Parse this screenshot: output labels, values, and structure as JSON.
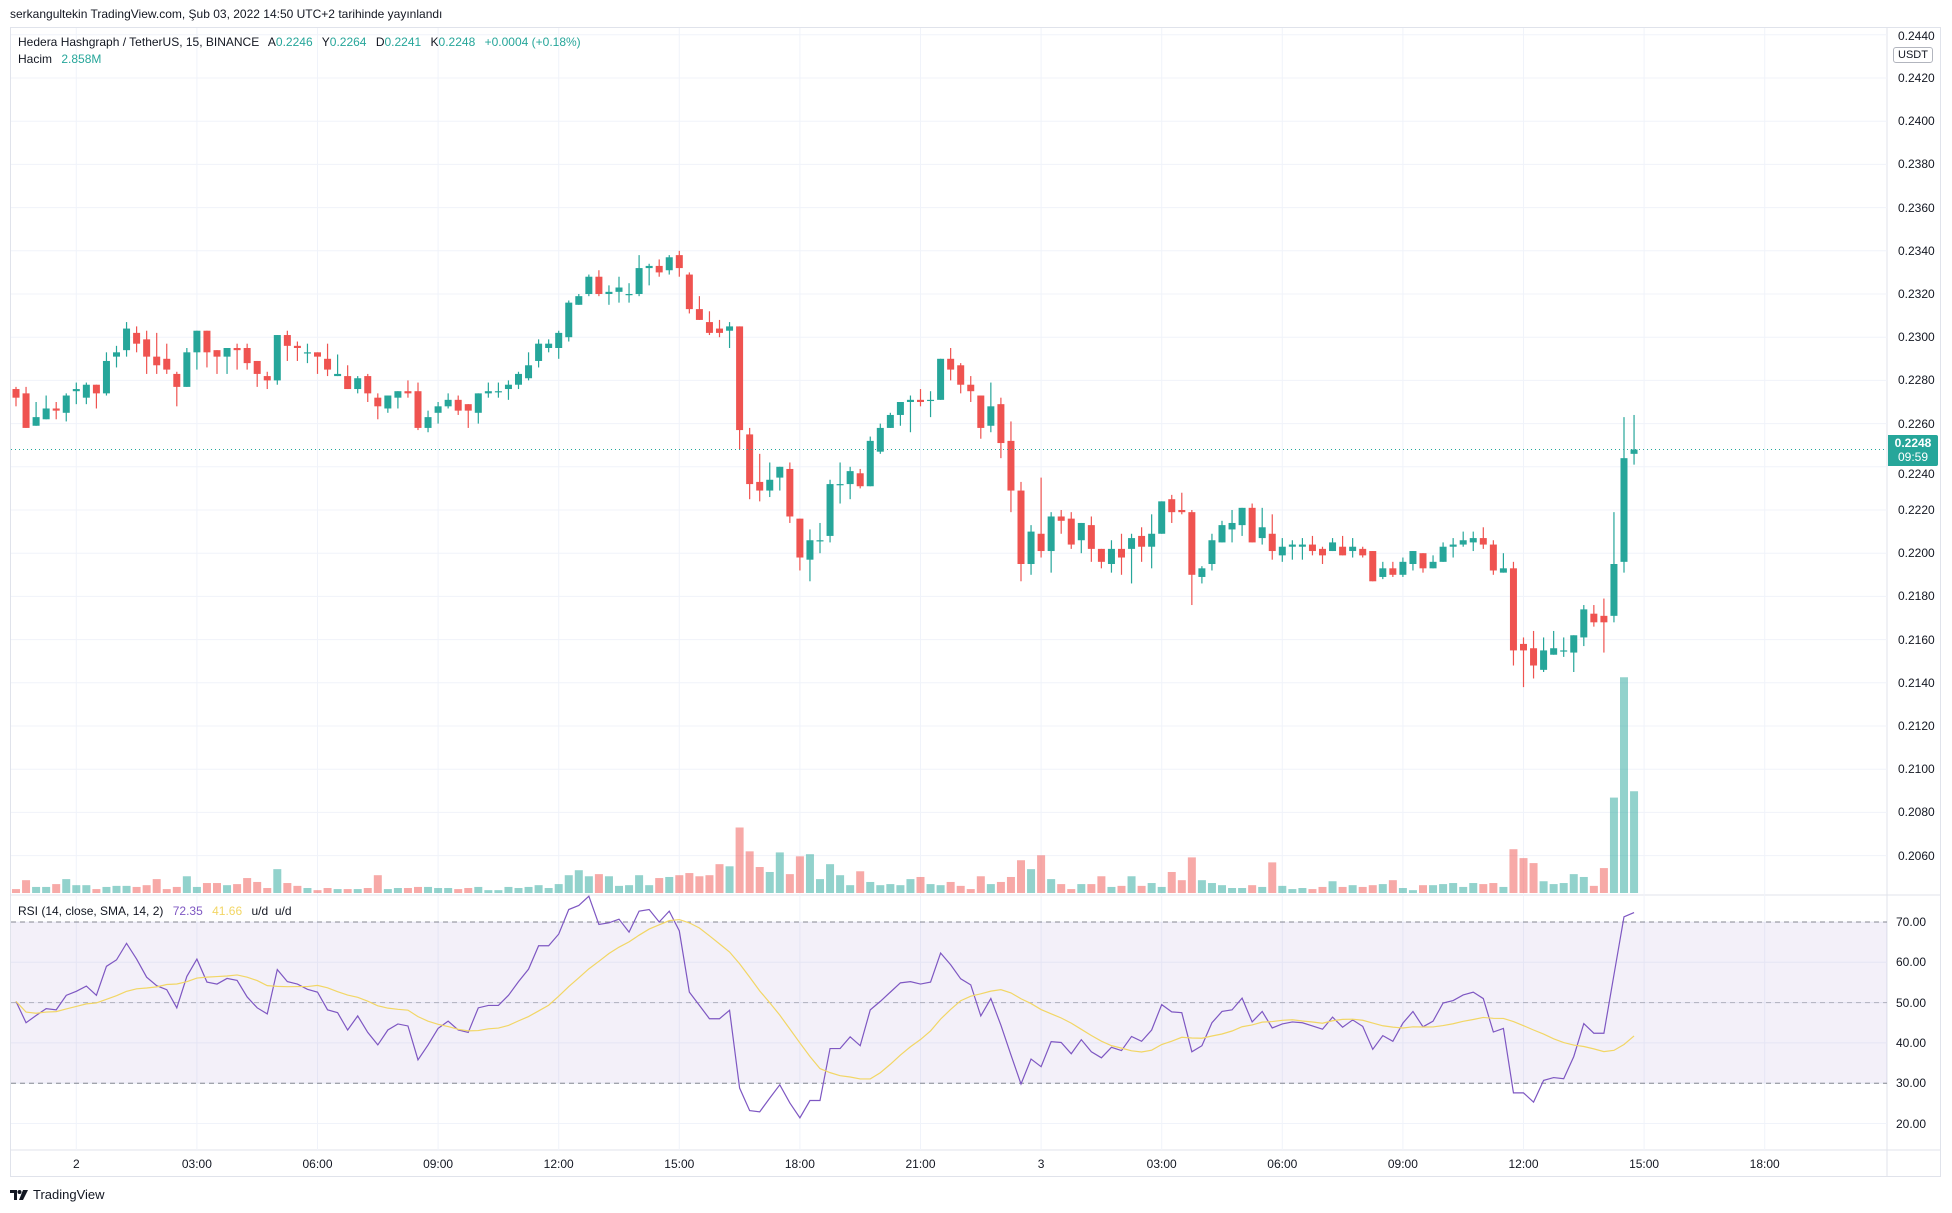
{
  "publish_line": "serkangultekin TradingView.com, Şub 03, 2022 14:50 UTC+2 tarihinde yayınlandı",
  "legend": {
    "symbol": "Hedera Hashgraph / TetherUS, 15, BINANCE",
    "open_label": "A",
    "open": "0.2246",
    "high_label": "Y",
    "high": "0.2264",
    "low_label": "D",
    "low": "0.2241",
    "close_label": "K",
    "close": "0.2248",
    "change": "+0.0004 (+0.18%)",
    "volume_label": "Hacim",
    "volume": "2.858M"
  },
  "rsi_legend": {
    "title": "RSI (14, close, SMA, 14, 2)",
    "rsi": "72.35",
    "sma": "41.66",
    "extra": "u/d  u/d"
  },
  "price_axis": {
    "currency_badge": "USDT",
    "last_price": "0.2248",
    "countdown": "09:59"
  },
  "logo_text": "TradingView",
  "colors": {
    "up": "#26a69a",
    "down": "#ef5350",
    "rsi": "#7e57c2",
    "rsi_sma": "#f2d665",
    "band": "#7e57c2",
    "grid": "#f0f3fa"
  },
  "chart_data": {
    "type": "candlestick",
    "interval_minutes": 15,
    "first_bar_time": "2022-02-01T22:30",
    "price_ticks": [
      "0.2060",
      "0.2080",
      "0.2100",
      "0.2120",
      "0.2140",
      "0.2160",
      "0.2180",
      "0.2200",
      "0.2220",
      "0.2240",
      "0.2260",
      "0.2280",
      "0.2300",
      "0.2320",
      "0.2340",
      "0.2360",
      "0.2380",
      "0.2400",
      "0.2420",
      "0.2440"
    ],
    "rsi_ticks": [
      "20.00",
      "30.00",
      "40.00",
      "50.00",
      "60.00",
      "70.00"
    ],
    "rsi_levels": {
      "upper": 70,
      "middle": 50,
      "lower": 30
    },
    "rsi_sma_length": 14,
    "time_ticks": [
      {
        "label": "2",
        "time": "2022-02-02T00:00"
      },
      {
        "label": "03:00",
        "time": "2022-02-02T03:00"
      },
      {
        "label": "06:00",
        "time": "2022-02-02T06:00"
      },
      {
        "label": "09:00",
        "time": "2022-02-02T09:00"
      },
      {
        "label": "12:00",
        "time": "2022-02-02T12:00"
      },
      {
        "label": "15:00",
        "time": "2022-02-02T15:00"
      },
      {
        "label": "18:00",
        "time": "2022-02-02T18:00"
      },
      {
        "label": "21:00",
        "time": "2022-02-02T21:00"
      },
      {
        "label": "3",
        "time": "2022-02-03T00:00"
      },
      {
        "label": "03:00",
        "time": "2022-02-03T03:00"
      },
      {
        "label": "06:00",
        "time": "2022-02-03T06:00"
      },
      {
        "label": "09:00",
        "time": "2022-02-03T09:00"
      },
      {
        "label": "12:00",
        "time": "2022-02-03T12:00"
      },
      {
        "label": "15:00",
        "time": "2022-02-03T15:00"
      },
      {
        "label": "18:00",
        "time": "2022-02-03T18:00"
      }
    ],
    "ohlc": [
      [
        0.2276,
        0.2277,
        0.2268,
        0.2272
      ],
      [
        0.2274,
        0.2277,
        0.2258,
        0.2258
      ],
      [
        0.2259,
        0.227,
        0.2259,
        0.2263
      ],
      [
        0.2262,
        0.2273,
        0.2262,
        0.2267
      ],
      [
        0.2267,
        0.227,
        0.2262,
        0.2266
      ],
      [
        0.2265,
        0.2274,
        0.2261,
        0.2273
      ],
      [
        0.2275,
        0.2279,
        0.2269,
        0.2276
      ],
      [
        0.2272,
        0.2279,
        0.2269,
        0.2278
      ],
      [
        0.2278,
        0.2278,
        0.2267,
        0.2274
      ],
      [
        0.2274,
        0.2293,
        0.2273,
        0.2289
      ],
      [
        0.2291,
        0.2296,
        0.2286,
        0.2293
      ],
      [
        0.2294,
        0.2307,
        0.2291,
        0.2304
      ],
      [
        0.2302,
        0.2305,
        0.2293,
        0.2297
      ],
      [
        0.2299,
        0.2303,
        0.2283,
        0.2291
      ],
      [
        0.2291,
        0.2302,
        0.2283,
        0.2287
      ],
      [
        0.229,
        0.2297,
        0.2283,
        0.2285
      ],
      [
        0.2283,
        0.2284,
        0.2268,
        0.2277
      ],
      [
        0.2277,
        0.2295,
        0.2277,
        0.2293
      ],
      [
        0.2293,
        0.2303,
        0.2285,
        0.2303
      ],
      [
        0.2303,
        0.2303,
        0.2286,
        0.2293
      ],
      [
        0.2294,
        0.2294,
        0.2283,
        0.2291
      ],
      [
        0.2291,
        0.2295,
        0.2283,
        0.2295
      ],
      [
        0.2295,
        0.2297,
        0.2285,
        0.2294
      ],
      [
        0.2295,
        0.2297,
        0.2285,
        0.2288
      ],
      [
        0.2289,
        0.2289,
        0.2277,
        0.2283
      ],
      [
        0.2282,
        0.2284,
        0.2276,
        0.228
      ],
      [
        0.228,
        0.2301,
        0.2278,
        0.2301
      ],
      [
        0.2301,
        0.2303,
        0.2289,
        0.2296
      ],
      [
        0.2296,
        0.2298,
        0.2289,
        0.2295
      ],
      [
        0.2293,
        0.2297,
        0.2288,
        0.2293
      ],
      [
        0.2293,
        0.2293,
        0.2283,
        0.2291
      ],
      [
        0.229,
        0.2297,
        0.2282,
        0.2285
      ],
      [
        0.2282,
        0.2292,
        0.2282,
        0.2283
      ],
      [
        0.2282,
        0.2287,
        0.2276,
        0.2276
      ],
      [
        0.2276,
        0.2282,
        0.2274,
        0.2281
      ],
      [
        0.2282,
        0.2283,
        0.227,
        0.2274
      ],
      [
        0.2272,
        0.2274,
        0.2262,
        0.2268
      ],
      [
        0.2267,
        0.2273,
        0.2265,
        0.2273
      ],
      [
        0.2272,
        0.2275,
        0.2267,
        0.2275
      ],
      [
        0.2275,
        0.228,
        0.2272,
        0.2274
      ],
      [
        0.2275,
        0.2279,
        0.2257,
        0.2258
      ],
      [
        0.2258,
        0.2266,
        0.2256,
        0.2263
      ],
      [
        0.2265,
        0.227,
        0.226,
        0.2268
      ],
      [
        0.2268,
        0.2274,
        0.2267,
        0.2271
      ],
      [
        0.2271,
        0.2273,
        0.2264,
        0.2266
      ],
      [
        0.2269,
        0.2269,
        0.2258,
        0.2266
      ],
      [
        0.2265,
        0.2274,
        0.226,
        0.2274
      ],
      [
        0.2274,
        0.2279,
        0.2272,
        0.2275
      ],
      [
        0.2275,
        0.2279,
        0.2272,
        0.2275
      ],
      [
        0.2276,
        0.228,
        0.2271,
        0.2278
      ],
      [
        0.2278,
        0.2284,
        0.2276,
        0.2283
      ],
      [
        0.2281,
        0.2293,
        0.228,
        0.2287
      ],
      [
        0.2289,
        0.2299,
        0.2286,
        0.2297
      ],
      [
        0.2295,
        0.2299,
        0.2293,
        0.2297
      ],
      [
        0.2295,
        0.2303,
        0.229,
        0.2302
      ],
      [
        0.23,
        0.2317,
        0.2298,
        0.2316
      ],
      [
        0.2315,
        0.232,
        0.2315,
        0.2319
      ],
      [
        0.232,
        0.2329,
        0.2319,
        0.2328
      ],
      [
        0.2328,
        0.2331,
        0.2319,
        0.232
      ],
      [
        0.232,
        0.2324,
        0.2315,
        0.2321
      ],
      [
        0.2321,
        0.2328,
        0.2316,
        0.2323
      ],
      [
        0.232,
        0.2325,
        0.2316,
        0.232
      ],
      [
        0.232,
        0.2338,
        0.2319,
        0.2332
      ],
      [
        0.2332,
        0.2334,
        0.2324,
        0.2333
      ],
      [
        0.2333,
        0.2336,
        0.2328,
        0.233
      ],
      [
        0.2331,
        0.2338,
        0.2329,
        0.2337
      ],
      [
        0.2338,
        0.234,
        0.2328,
        0.2332
      ],
      [
        0.2329,
        0.233,
        0.2311,
        0.2313
      ],
      [
        0.2313,
        0.2319,
        0.2308,
        0.2308
      ],
      [
        0.2307,
        0.2312,
        0.2301,
        0.2302
      ],
      [
        0.2304,
        0.2308,
        0.23,
        0.2302
      ],
      [
        0.2303,
        0.2307,
        0.2295,
        0.2305
      ],
      [
        0.2305,
        0.2305,
        0.2248,
        0.2257
      ],
      [
        0.2255,
        0.2258,
        0.2225,
        0.2232
      ],
      [
        0.2233,
        0.2246,
        0.2224,
        0.2229
      ],
      [
        0.2229,
        0.2242,
        0.2226,
        0.2234
      ],
      [
        0.2235,
        0.224,
        0.2229,
        0.224
      ],
      [
        0.2239,
        0.2242,
        0.2214,
        0.2217
      ],
      [
        0.2216,
        0.2216,
        0.2192,
        0.2198
      ],
      [
        0.2197,
        0.2211,
        0.2187,
        0.2206
      ],
      [
        0.2206,
        0.2214,
        0.22,
        0.2206
      ],
      [
        0.2208,
        0.2234,
        0.2205,
        0.2232
      ],
      [
        0.2232,
        0.2242,
        0.2223,
        0.2232
      ],
      [
        0.2232,
        0.224,
        0.2225,
        0.2238
      ],
      [
        0.2237,
        0.2239,
        0.223,
        0.2231
      ],
      [
        0.2231,
        0.2254,
        0.2231,
        0.2252
      ],
      [
        0.2247,
        0.226,
        0.2246,
        0.2258
      ],
      [
        0.2258,
        0.2265,
        0.2258,
        0.2264
      ],
      [
        0.2264,
        0.227,
        0.2259,
        0.227
      ],
      [
        0.227,
        0.2273,
        0.2256,
        0.2271
      ],
      [
        0.2271,
        0.2276,
        0.2268,
        0.227
      ],
      [
        0.2271,
        0.2275,
        0.2263,
        0.2271
      ],
      [
        0.2271,
        0.229,
        0.2271,
        0.229
      ],
      [
        0.229,
        0.2295,
        0.228,
        0.2285
      ],
      [
        0.2287,
        0.2288,
        0.2274,
        0.2278
      ],
      [
        0.2278,
        0.2282,
        0.227,
        0.2275
      ],
      [
        0.2273,
        0.2273,
        0.2253,
        0.2258
      ],
      [
        0.2259,
        0.2279,
        0.2256,
        0.2268
      ],
      [
        0.2269,
        0.2272,
        0.2244,
        0.2251
      ],
      [
        0.2252,
        0.2261,
        0.2219,
        0.2229
      ],
      [
        0.2229,
        0.2233,
        0.2187,
        0.2195
      ],
      [
        0.2195,
        0.2213,
        0.219,
        0.221
      ],
      [
        0.2209,
        0.2235,
        0.2198,
        0.2201
      ],
      [
        0.2201,
        0.2219,
        0.2191,
        0.2217
      ],
      [
        0.2217,
        0.222,
        0.2209,
        0.2215
      ],
      [
        0.2216,
        0.2219,
        0.2202,
        0.2204
      ],
      [
        0.2206,
        0.2214,
        0.22,
        0.2214
      ],
      [
        0.2213,
        0.2217,
        0.2196,
        0.2202
      ],
      [
        0.2202,
        0.2202,
        0.2193,
        0.2196
      ],
      [
        0.2195,
        0.2206,
        0.2191,
        0.2202
      ],
      [
        0.2202,
        0.2209,
        0.219,
        0.2198
      ],
      [
        0.2202,
        0.2209,
        0.2186,
        0.2207
      ],
      [
        0.2208,
        0.2212,
        0.2196,
        0.2203
      ],
      [
        0.2203,
        0.2218,
        0.2193,
        0.2209
      ],
      [
        0.2209,
        0.2224,
        0.2209,
        0.2224
      ],
      [
        0.2225,
        0.2227,
        0.2214,
        0.2219
      ],
      [
        0.222,
        0.2228,
        0.2218,
        0.2219
      ],
      [
        0.2219,
        0.222,
        0.2176,
        0.219
      ],
      [
        0.2189,
        0.2194,
        0.2186,
        0.2193
      ],
      [
        0.2195,
        0.2209,
        0.2192,
        0.2206
      ],
      [
        0.2205,
        0.2215,
        0.2205,
        0.2213
      ],
      [
        0.2211,
        0.222,
        0.2205,
        0.2214
      ],
      [
        0.2213,
        0.2221,
        0.2208,
        0.2221
      ],
      [
        0.2221,
        0.2223,
        0.2205,
        0.2205
      ],
      [
        0.2207,
        0.2221,
        0.2204,
        0.2212
      ],
      [
        0.2209,
        0.2218,
        0.2197,
        0.2201
      ],
      [
        0.2199,
        0.2207,
        0.2196,
        0.2203
      ],
      [
        0.2203,
        0.2206,
        0.2197,
        0.2204
      ],
      [
        0.2203,
        0.2207,
        0.2197,
        0.2204
      ],
      [
        0.2204,
        0.2208,
        0.2199,
        0.2201
      ],
      [
        0.2202,
        0.2203,
        0.2195,
        0.2199
      ],
      [
        0.2201,
        0.2207,
        0.2201,
        0.2205
      ],
      [
        0.2203,
        0.2208,
        0.2199,
        0.2199
      ],
      [
        0.2201,
        0.2207,
        0.2198,
        0.2203
      ],
      [
        0.2202,
        0.2203,
        0.2198,
        0.2199
      ],
      [
        0.2201,
        0.2201,
        0.2187,
        0.2187
      ],
      [
        0.2189,
        0.2196,
        0.2188,
        0.2193
      ],
      [
        0.2193,
        0.2196,
        0.2189,
        0.219
      ],
      [
        0.219,
        0.2198,
        0.2189,
        0.2196
      ],
      [
        0.2195,
        0.2201,
        0.2192,
        0.2201
      ],
      [
        0.22,
        0.22,
        0.2191,
        0.2193
      ],
      [
        0.2193,
        0.2199,
        0.2193,
        0.2196
      ],
      [
        0.2196,
        0.2205,
        0.2196,
        0.2203
      ],
      [
        0.2203,
        0.2207,
        0.2198,
        0.2204
      ],
      [
        0.2204,
        0.221,
        0.2203,
        0.2206
      ],
      [
        0.2205,
        0.221,
        0.2201,
        0.2207
      ],
      [
        0.2207,
        0.2212,
        0.2202,
        0.2204
      ],
      [
        0.2204,
        0.2206,
        0.219,
        0.2192
      ],
      [
        0.2191,
        0.22,
        0.2191,
        0.2193
      ],
      [
        0.2193,
        0.2196,
        0.2148,
        0.2155
      ],
      [
        0.2158,
        0.2161,
        0.2138,
        0.2155
      ],
      [
        0.2156,
        0.2164,
        0.2142,
        0.2148
      ],
      [
        0.2146,
        0.2161,
        0.2145,
        0.2155
      ],
      [
        0.2153,
        0.2164,
        0.2153,
        0.2156
      ],
      [
        0.2155,
        0.2161,
        0.2152,
        0.2155
      ],
      [
        0.2154,
        0.2162,
        0.2145,
        0.2162
      ],
      [
        0.2161,
        0.2176,
        0.2157,
        0.2174
      ],
      [
        0.2172,
        0.2176,
        0.2166,
        0.2168
      ],
      [
        0.2171,
        0.2179,
        0.2154,
        0.2168
      ],
      [
        0.2171,
        0.2219,
        0.2168,
        0.2195
      ],
      [
        0.2196,
        0.2263,
        0.2191,
        0.2244
      ],
      [
        0.2246,
        0.2264,
        0.2241,
        0.2248
      ]
    ],
    "volume_millions": [
      0.11,
      0.36,
      0.17,
      0.17,
      0.25,
      0.39,
      0.22,
      0.22,
      0.11,
      0.17,
      0.2,
      0.2,
      0.17,
      0.22,
      0.39,
      0.11,
      0.17,
      0.47,
      0.17,
      0.28,
      0.28,
      0.22,
      0.25,
      0.42,
      0.31,
      0.14,
      0.67,
      0.28,
      0.2,
      0.14,
      0.08,
      0.14,
      0.11,
      0.11,
      0.11,
      0.14,
      0.5,
      0.11,
      0.14,
      0.14,
      0.17,
      0.17,
      0.14,
      0.14,
      0.11,
      0.14,
      0.17,
      0.08,
      0.08,
      0.17,
      0.14,
      0.17,
      0.22,
      0.14,
      0.25,
      0.5,
      0.64,
      0.47,
      0.53,
      0.47,
      0.2,
      0.22,
      0.5,
      0.22,
      0.42,
      0.45,
      0.5,
      0.56,
      0.47,
      0.5,
      0.81,
      0.75,
      1.84,
      1.17,
      0.73,
      0.59,
      1.14,
      0.53,
      1.03,
      1.09,
      0.39,
      0.81,
      0.5,
      0.22,
      0.61,
      0.31,
      0.22,
      0.25,
      0.22,
      0.39,
      0.45,
      0.25,
      0.22,
      0.31,
      0.2,
      0.11,
      0.47,
      0.25,
      0.31,
      0.45,
      0.92,
      0.67,
      1.06,
      0.39,
      0.25,
      0.11,
      0.25,
      0.25,
      0.47,
      0.17,
      0.2,
      0.47,
      0.2,
      0.28,
      0.17,
      0.59,
      0.36,
      1.0,
      0.36,
      0.28,
      0.22,
      0.14,
      0.14,
      0.22,
      0.17,
      0.86,
      0.2,
      0.11,
      0.14,
      0.11,
      0.17,
      0.33,
      0.17,
      0.22,
      0.17,
      0.22,
      0.25,
      0.36,
      0.14,
      0.08,
      0.22,
      0.22,
      0.25,
      0.28,
      0.17,
      0.28,
      0.25,
      0.28,
      0.17,
      1.23,
      0.98,
      0.84,
      0.33,
      0.25,
      0.28,
      0.53,
      0.45,
      0.2,
      0.7,
      2.68,
      6.06,
      2.858
    ],
    "rsi": [
      50.3,
      45.0,
      46.8,
      48.5,
      48.2,
      51.8,
      52.8,
      54.1,
      51.8,
      59.0,
      60.6,
      64.7,
      60.8,
      56.3,
      54.2,
      53.2,
      48.7,
      56.5,
      60.8,
      55.1,
      54.6,
      56.0,
      55.5,
      51.4,
      48.7,
      47.2,
      58.2,
      55.2,
      54.6,
      53.3,
      52.6,
      48.2,
      47.5,
      43.2,
      46.7,
      42.6,
      39.5,
      43.2,
      44.7,
      44.2,
      35.8,
      39.5,
      43.6,
      45.4,
      43.2,
      42.6,
      48.7,
      49.3,
      49.3,
      51.8,
      55.2,
      58.3,
      64.1,
      64.1,
      67.0,
      73.1,
      74.1,
      76.4,
      69.4,
      69.8,
      70.7,
      67.5,
      72.7,
      73.1,
      70.0,
      72.7,
      67.8,
      52.6,
      49.3,
      46.0,
      46.0,
      48.1,
      28.8,
      23.2,
      22.9,
      26.3,
      29.6,
      25.1,
      21.4,
      25.7,
      25.7,
      38.6,
      38.6,
      41.5,
      39.3,
      48.2,
      50.3,
      52.6,
      54.9,
      55.2,
      54.6,
      55.1,
      62.3,
      59.4,
      55.9,
      54.4,
      46.7,
      51.0,
      44.4,
      37.0,
      29.8,
      36.0,
      34.1,
      40.3,
      40.1,
      37.3,
      40.8,
      37.8,
      36.3,
      38.9,
      38.1,
      41.6,
      40.4,
      43.2,
      49.5,
      47.7,
      47.5,
      37.8,
      39.3,
      45.0,
      47.8,
      48.2,
      51.1,
      45.2,
      47.8,
      43.7,
      44.7,
      45.2,
      45.0,
      44.2,
      43.4,
      46.4,
      43.9,
      45.7,
      44.1,
      38.4,
      41.8,
      40.4,
      44.9,
      47.8,
      44.0,
      45.4,
      49.9,
      50.5,
      51.9,
      52.6,
      51.0,
      42.7,
      43.6,
      27.6,
      27.6,
      25.3,
      30.7,
      31.4,
      31.1,
      36.6,
      44.8,
      42.4,
      42.4,
      56.9,
      71.3,
      72.35
    ]
  }
}
